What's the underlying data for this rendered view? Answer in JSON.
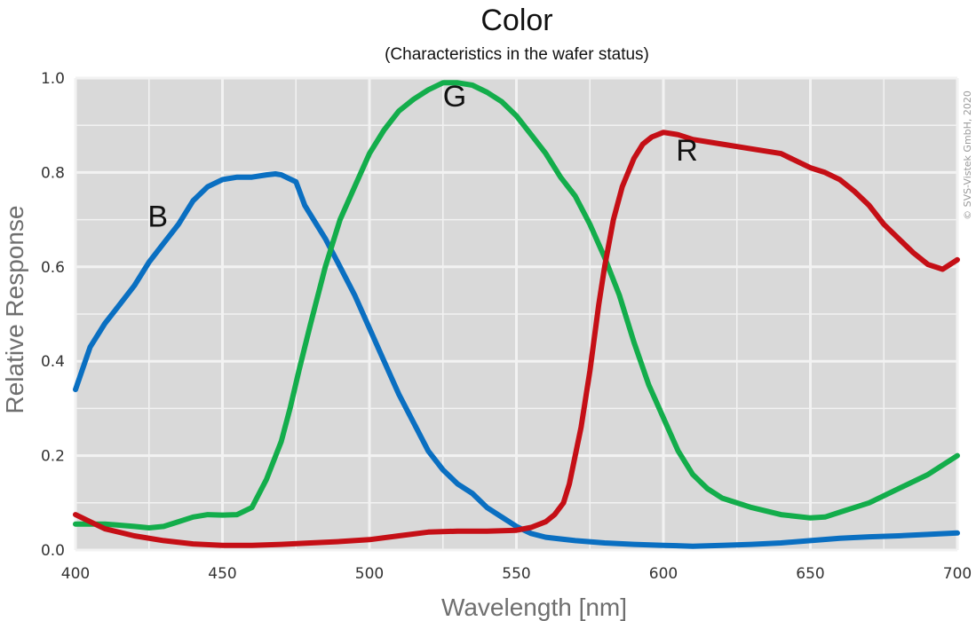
{
  "title": "Color",
  "subtitle": "(Characteristics in the wafer status)",
  "copyright": "© SVS-Vistek GmbH, 2020",
  "colors": {
    "plot_bg": "#d9d9d9",
    "grid": "#f2f2f2",
    "B": "#0a6fc1",
    "G": "#13ad4b",
    "R": "#c50f16"
  },
  "chart_data": {
    "type": "line",
    "xlabel": "Wavelength [nm]",
    "ylabel": "Relative Response",
    "xlim": [
      400,
      700
    ],
    "ylim": [
      0,
      1.0
    ],
    "x_ticks": [
      400,
      450,
      500,
      550,
      600,
      650,
      700
    ],
    "x_tick_labels": [
      "400",
      "450",
      "500",
      "550",
      "600",
      "650",
      "700"
    ],
    "y_ticks": [
      0,
      0.2,
      0.4,
      0.6,
      0.8,
      1.0
    ],
    "y_tick_labels": [
      "0.0",
      "0.2",
      "0.4",
      "0.6",
      "0.8",
      "1.0"
    ],
    "grid": true,
    "series": [
      {
        "name": "B",
        "color": "#0a6fc1",
        "x": [
          400,
          405,
          410,
          415,
          420,
          425,
          430,
          435,
          440,
          445,
          450,
          455,
          460,
          465,
          468,
          470,
          475,
          478,
          480,
          485,
          490,
          495,
          500,
          505,
          510,
          515,
          520,
          525,
          530,
          535,
          540,
          545,
          550,
          555,
          560,
          570,
          580,
          590,
          600,
          610,
          620,
          630,
          640,
          650,
          660,
          670,
          680,
          690,
          700
        ],
        "y": [
          0.34,
          0.43,
          0.48,
          0.52,
          0.56,
          0.61,
          0.65,
          0.69,
          0.74,
          0.77,
          0.785,
          0.79,
          0.79,
          0.795,
          0.797,
          0.795,
          0.78,
          0.73,
          0.71,
          0.66,
          0.6,
          0.54,
          0.47,
          0.4,
          0.33,
          0.27,
          0.21,
          0.17,
          0.14,
          0.12,
          0.09,
          0.07,
          0.05,
          0.035,
          0.027,
          0.02,
          0.015,
          0.012,
          0.01,
          0.008,
          0.01,
          0.012,
          0.015,
          0.02,
          0.025,
          0.028,
          0.03,
          0.033,
          0.036
        ]
      },
      {
        "name": "G",
        "color": "#13ad4b",
        "x": [
          400,
          410,
          420,
          425,
          430,
          435,
          440,
          445,
          450,
          455,
          460,
          465,
          470,
          473,
          476,
          480,
          485,
          490,
          495,
          500,
          505,
          510,
          515,
          520,
          525,
          530,
          535,
          540,
          545,
          550,
          555,
          560,
          565,
          570,
          575,
          580,
          585,
          590,
          595,
          600,
          605,
          610,
          615,
          620,
          630,
          640,
          650,
          655,
          660,
          670,
          680,
          690,
          700
        ],
        "y": [
          0.055,
          0.055,
          0.05,
          0.047,
          0.05,
          0.06,
          0.07,
          0.075,
          0.074,
          0.075,
          0.09,
          0.15,
          0.23,
          0.3,
          0.38,
          0.48,
          0.6,
          0.7,
          0.77,
          0.84,
          0.89,
          0.93,
          0.955,
          0.975,
          0.99,
          0.99,
          0.985,
          0.97,
          0.95,
          0.92,
          0.88,
          0.84,
          0.79,
          0.75,
          0.69,
          0.62,
          0.54,
          0.44,
          0.35,
          0.28,
          0.21,
          0.16,
          0.13,
          0.11,
          0.09,
          0.075,
          0.068,
          0.07,
          0.08,
          0.1,
          0.13,
          0.16,
          0.2
        ]
      },
      {
        "name": "R",
        "color": "#c50f16",
        "x": [
          400,
          405,
          410,
          420,
          430,
          440,
          450,
          460,
          470,
          480,
          490,
          500,
          510,
          520,
          530,
          540,
          550,
          555,
          560,
          563,
          566,
          568,
          570,
          572,
          575,
          578,
          580,
          583,
          586,
          590,
          593,
          596,
          600,
          605,
          610,
          620,
          630,
          640,
          645,
          650,
          655,
          660,
          665,
          670,
          675,
          680,
          685,
          690,
          695,
          700
        ],
        "y": [
          0.075,
          0.06,
          0.045,
          0.03,
          0.02,
          0.013,
          0.01,
          0.01,
          0.012,
          0.015,
          0.018,
          0.022,
          0.03,
          0.038,
          0.04,
          0.04,
          0.042,
          0.048,
          0.06,
          0.075,
          0.1,
          0.14,
          0.2,
          0.26,
          0.38,
          0.52,
          0.6,
          0.7,
          0.77,
          0.83,
          0.86,
          0.875,
          0.885,
          0.88,
          0.87,
          0.86,
          0.85,
          0.84,
          0.825,
          0.81,
          0.8,
          0.785,
          0.76,
          0.73,
          0.69,
          0.66,
          0.63,
          0.605,
          0.595,
          0.615
        ]
      }
    ],
    "annotations": [
      {
        "text": "B",
        "x": 428,
        "y": 0.685
      },
      {
        "text": "G",
        "x": 529,
        "y": 0.94
      },
      {
        "text": "R",
        "x": 608,
        "y": 0.825
      }
    ]
  }
}
